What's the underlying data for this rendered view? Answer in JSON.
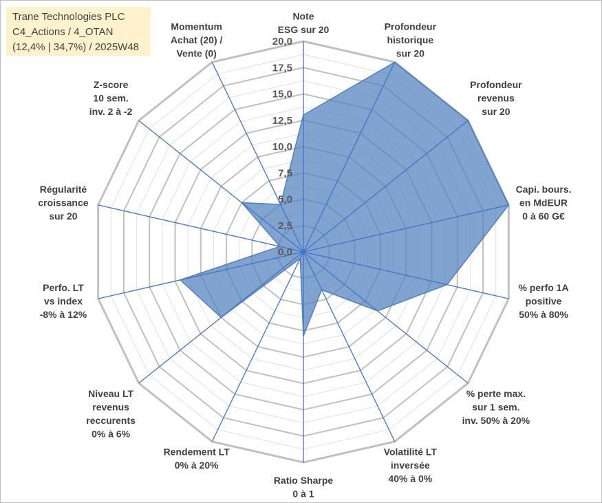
{
  "header": {
    "lines": [
      "Trane Technologies PLC",
      "C4_Actions / 4_OTAN",
      "(12,4% | 34,7%) / 2025W48"
    ],
    "background": "#fff2cc"
  },
  "chart_data": {
    "type": "radar",
    "title": "",
    "range": [
      0,
      20
    ],
    "tick_values": [
      0,
      2.5,
      5,
      7.5,
      10,
      12.5,
      15,
      17.5,
      20
    ],
    "tick_labels": [
      "0,0",
      "2,5",
      "5,0",
      "7,5",
      "10,0",
      "12,5",
      "15,0",
      "17,5",
      "20,0"
    ],
    "categories": [
      [
        "Note",
        "ESG sur 20"
      ],
      [
        "Profondeur",
        "historique",
        "sur 20"
      ],
      [
        "Profondeur",
        "revenus",
        "sur 20"
      ],
      [
        "Capi. bours.",
        "en MdEUR",
        "0 à 60 G€"
      ],
      [
        "% perfo 1A",
        "positive",
        "50% à 80%"
      ],
      [
        "% perte max.",
        "sur 1 sem.",
        "inv. 50% à 20%"
      ],
      [
        "Volatilité LT",
        "inversée",
        "40% à 0%"
      ],
      [
        "Ratio Sharpe",
        "0 à 1"
      ],
      [
        "Rendement LT",
        "0% à 20%"
      ],
      [
        "Niveau LT",
        "revenus",
        "reccurents",
        "0% à 6%"
      ],
      [
        "Perfo. LT",
        "vs index",
        "-8% à 12%"
      ],
      [
        "Régularité",
        "croissance",
        "sur 20"
      ],
      [
        "Z-score",
        "10 sem.",
        "inv. 2 à -2"
      ],
      [
        "Momentum",
        "Achat (20) /",
        "Vente (0)"
      ]
    ],
    "series": [
      {
        "values": [
          13,
          20,
          20,
          20,
          14,
          9,
          4,
          8,
          0.7,
          10,
          12,
          2.3,
          7.5,
          5
        ],
        "fill": "#4f81bd",
        "opacity": 0.72
      }
    ],
    "grid": true,
    "legend": "none",
    "colors": {
      "grid": "#c0c0c0",
      "spoke": "#4472c4",
      "series": "#4f81bd"
    }
  }
}
